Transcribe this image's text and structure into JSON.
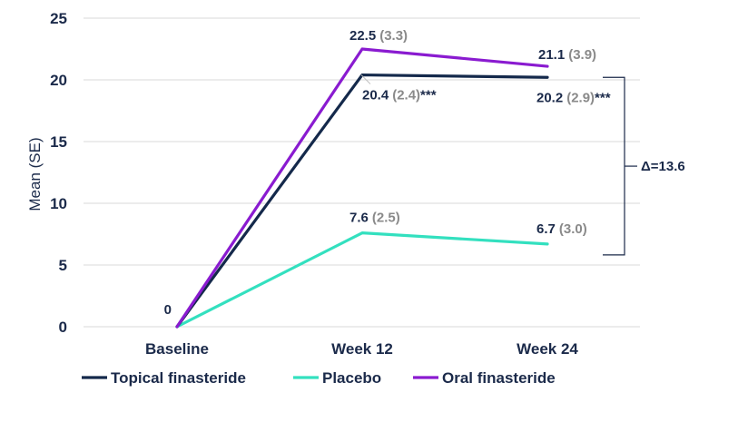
{
  "chart_data": {
    "type": "line",
    "title": "",
    "xlabel": "",
    "ylabel": "Mean (SE)",
    "ylim": [
      0,
      25
    ],
    "yticks": [
      "0",
      "5",
      "10",
      "15",
      "20",
      "25"
    ],
    "categories": [
      "Baseline",
      "Week 12",
      "Week 24"
    ],
    "grid": true,
    "legend_position": "bottom",
    "series": [
      {
        "name": "Topical finasteride",
        "color": "#14294b",
        "values": [
          0,
          20.4,
          20.2
        ],
        "value_labels": [
          "0",
          "20.4",
          "20.2"
        ],
        "se_labels": [
          "",
          "(2.4)",
          "(2.9)"
        ],
        "significance": [
          "",
          "***",
          "***"
        ]
      },
      {
        "name": "Placebo",
        "color": "#33e0bf",
        "values": [
          0,
          7.6,
          6.7
        ],
        "value_labels": [
          "",
          "7.6",
          "6.7"
        ],
        "se_labels": [
          "",
          "(2.5)",
          "(3.0)"
        ],
        "significance": [
          "",
          "",
          ""
        ]
      },
      {
        "name": "Oral finasteride",
        "color": "#8a1bd0",
        "values": [
          0,
          22.5,
          21.1
        ],
        "value_labels": [
          "",
          "22.5",
          "21.1"
        ],
        "se_labels": [
          "",
          "(3.3)",
          "(3.9)"
        ],
        "significance": [
          "",
          "",
          ""
        ]
      }
    ],
    "annotations": [
      {
        "text": "Δ=13.6",
        "between_values": [
          20.2,
          6.7
        ],
        "at_category": "Week 24"
      }
    ]
  }
}
